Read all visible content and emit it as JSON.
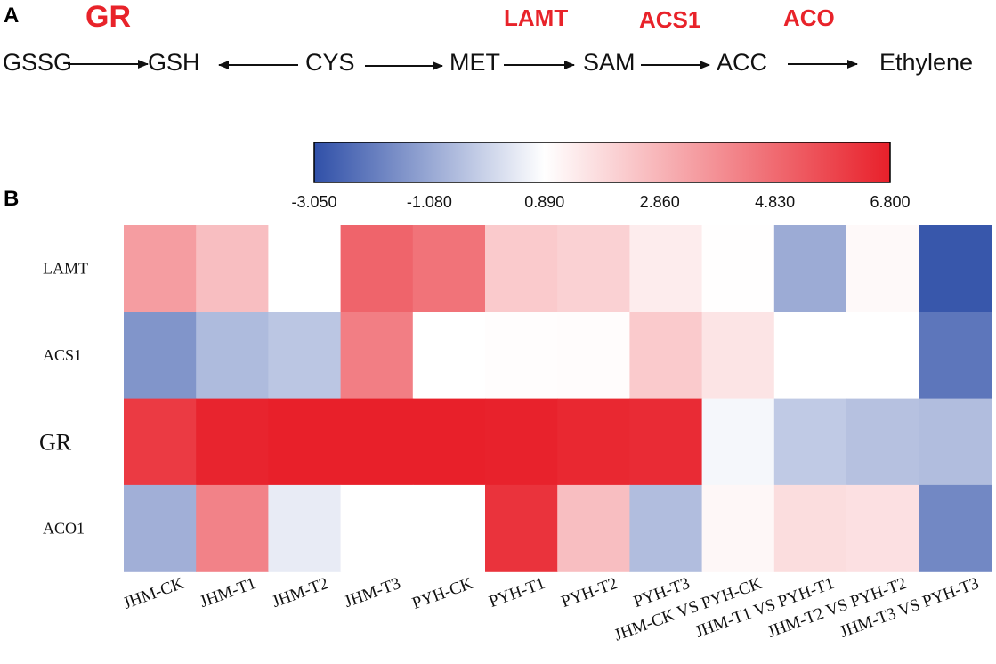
{
  "panel_a": {
    "label": "A",
    "nodes": [
      "GSSG",
      "GSH",
      "CYS",
      "MET",
      "SAM",
      "ACC",
      "Ethylene"
    ],
    "enzymes": [
      "GR",
      "LAMT",
      "ACS1",
      "ACO"
    ],
    "colors": {
      "enzyme": "#e8232a",
      "text": "#111111"
    }
  },
  "panel_b": {
    "label": "B"
  },
  "chart_data": {
    "type": "heatmap",
    "colorbar": {
      "ticks": [
        "-3.050",
        "-1.080",
        "0.890",
        "2.860",
        "4.830",
        "6.800"
      ],
      "min": -3.05,
      "max": 6.8,
      "mid": 0.89,
      "colors": {
        "low": "#3050a8",
        "mid": "#ffffff",
        "high": "#e8202a"
      }
    },
    "rows": [
      "LAMT",
      "ACS1",
      "GR",
      "ACO1"
    ],
    "columns": [
      "JHM-CK",
      "JHM-T1",
      "JHM-T2",
      "JHM-T3",
      "PYH-CK",
      "PYH-T1",
      "PYH-T2",
      "PYH-T3",
      "JHM-CK VS PYH-CK",
      "JHM-T1 VS PYH-T1",
      "JHM-T2 VS PYH-T2",
      "JHM-T3 VS PYH-T3"
    ],
    "values": [
      [
        3.5,
        2.6,
        0.89,
        5.0,
        4.6,
        2.3,
        2.1,
        1.4,
        0.92,
        -1.0,
        1.05,
        -2.9
      ],
      [
        -1.5,
        -0.65,
        -0.4,
        4.3,
        0.89,
        0.95,
        0.98,
        2.3,
        1.6,
        0.89,
        0.89,
        -2.2
      ],
      [
        6.1,
        6.7,
        6.8,
        6.8,
        6.8,
        6.75,
        6.6,
        6.5,
        0.7,
        -0.3,
        -0.5,
        -0.6
      ],
      [
        -0.9,
        4.2,
        0.45,
        0.89,
        0.89,
        6.3,
        2.6,
        -0.6,
        1.1,
        1.8,
        1.7,
        -1.8
      ]
    ]
  }
}
